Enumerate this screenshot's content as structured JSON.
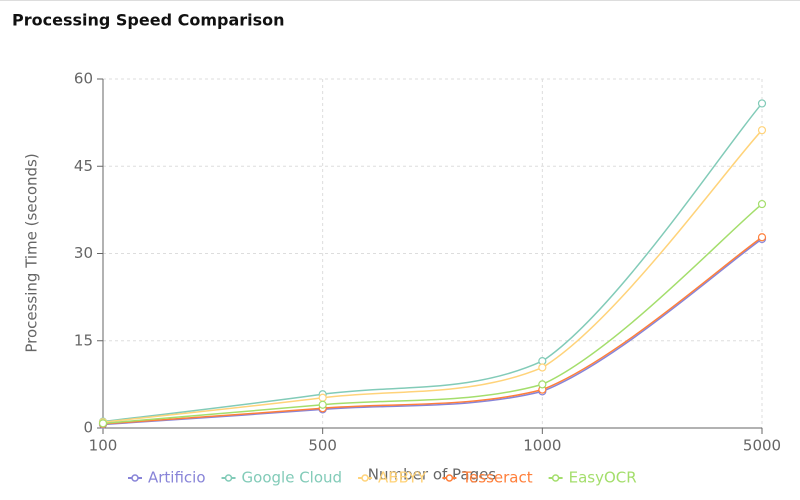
{
  "chart_data": {
    "type": "line",
    "title": "Processing Speed Comparison",
    "x_label": "Number of Pages",
    "y_label": "Processing Time (seconds)",
    "categories": [
      "100",
      "500",
      "1000",
      "5000"
    ],
    "series": [
      {
        "name": "Artificio",
        "color": "#8884d8",
        "values": [
          0.6,
          3.2,
          6.3,
          32.5
        ]
      },
      {
        "name": "Google Cloud",
        "color": "#82cbb8",
        "values": [
          1.1,
          5.8,
          11.5,
          55.8
        ]
      },
      {
        "name": "ABBYY",
        "color": "#ffd37a",
        "values": [
          1.0,
          5.2,
          10.4,
          51.2
        ]
      },
      {
        "name": "Tesseract",
        "color": "#ff7f3a",
        "values": [
          0.7,
          3.4,
          6.6,
          32.8
        ]
      },
      {
        "name": "EasyOCR",
        "color": "#a4de6c",
        "values": [
          0.8,
          4.0,
          7.5,
          38.5
        ]
      }
    ],
    "ylim": [
      0,
      60
    ],
    "yticks": [
      0,
      15,
      30,
      45,
      60
    ],
    "grid": true,
    "legend": "bottom"
  }
}
